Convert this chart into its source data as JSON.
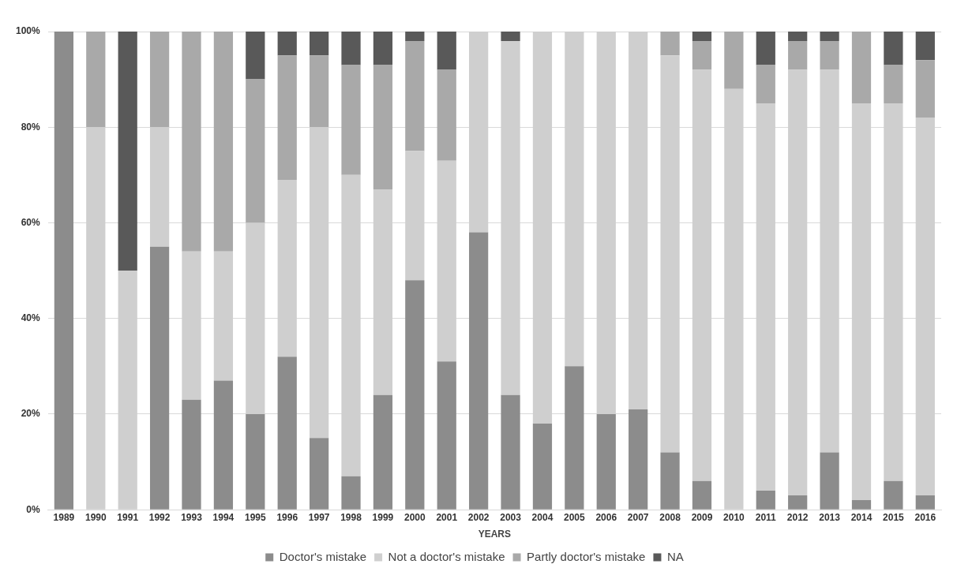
{
  "chart_data": {
    "type": "bar",
    "stacked": true,
    "xlabel": "YEARS",
    "categories": [
      "1989",
      "1990",
      "1991",
      "1992",
      "1993",
      "1994",
      "1995",
      "1996",
      "1997",
      "1998",
      "1999",
      "2000",
      "2001",
      "2002",
      "2003",
      "2004",
      "2005",
      "2006",
      "2007",
      "2008",
      "2009",
      "2010",
      "2011",
      "2012",
      "2013",
      "2014",
      "2015",
      "2016"
    ],
    "series": [
      {
        "name": "Doctor's mistake",
        "color": "#8c8c8c",
        "values": [
          100,
          0,
          0,
          55,
          23,
          27,
          20,
          32,
          15,
          7,
          24,
          48,
          31,
          58,
          24,
          18,
          30,
          20,
          21,
          12,
          6,
          0,
          4,
          3,
          12,
          2,
          6,
          3
        ]
      },
      {
        "name": "Not a doctor's mistake",
        "color": "#cfcfcf",
        "values": [
          0,
          80,
          50,
          25,
          31,
          27,
          40,
          37,
          65,
          63,
          43,
          27,
          42,
          42,
          74,
          82,
          70,
          80,
          79,
          83,
          86,
          88,
          81,
          89,
          80,
          83,
          79,
          79
        ]
      },
      {
        "name": "Partly doctor's mistake",
        "color": "#a9a9a9",
        "values": [
          0,
          20,
          0,
          20,
          46,
          46,
          30,
          26,
          15,
          23,
          26,
          23,
          19,
          0,
          0,
          0,
          0,
          0,
          0,
          5,
          6,
          12,
          8,
          6,
          6,
          15,
          8,
          12
        ]
      },
      {
        "name": "NA",
        "color": "#595959",
        "values": [
          0,
          0,
          50,
          0,
          0,
          0,
          10,
          5,
          5,
          7,
          7,
          2,
          8,
          0,
          2,
          0,
          0,
          0,
          0,
          0,
          2,
          0,
          7,
          2,
          2,
          0,
          7,
          6
        ]
      }
    ],
    "ylim": [
      0,
      100
    ],
    "yticks": [
      {
        "value": 0,
        "label": "0%"
      },
      {
        "value": 20,
        "label": "20%"
      },
      {
        "value": 40,
        "label": "40%"
      },
      {
        "value": 60,
        "label": "60%"
      },
      {
        "value": 80,
        "label": "80%"
      },
      {
        "value": 100,
        "label": "100%"
      }
    ],
    "grid": "y",
    "legend": "bottom"
  }
}
